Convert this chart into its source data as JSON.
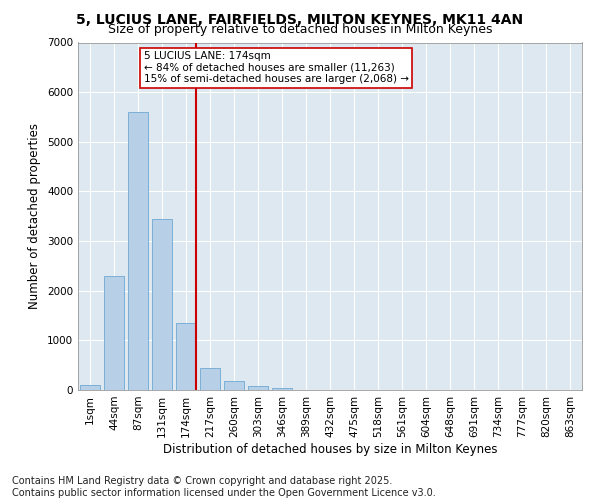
{
  "title": "5, LUCIUS LANE, FAIRFIELDS, MILTON KEYNES, MK11 4AN",
  "subtitle": "Size of property relative to detached houses in Milton Keynes",
  "xlabel": "Distribution of detached houses by size in Milton Keynes",
  "ylabel": "Number of detached properties",
  "bar_labels": [
    "1sqm",
    "44sqm",
    "87sqm",
    "131sqm",
    "174sqm",
    "217sqm",
    "260sqm",
    "303sqm",
    "346sqm",
    "389sqm",
    "432sqm",
    "475sqm",
    "518sqm",
    "561sqm",
    "604sqm",
    "648sqm",
    "691sqm",
    "734sqm",
    "777sqm",
    "820sqm",
    "863sqm"
  ],
  "bar_values": [
    100,
    2300,
    5600,
    3450,
    1350,
    450,
    175,
    90,
    40,
    0,
    0,
    0,
    0,
    0,
    0,
    0,
    0,
    0,
    0,
    0,
    0
  ],
  "bar_color": "#b8cfe8",
  "bar_edge_color": "#6fa8d4",
  "vline_color": "#cc0000",
  "annotation_text": "5 LUCIUS LANE: 174sqm\n← 84% of detached houses are smaller (11,263)\n15% of semi-detached houses are larger (2,068) →",
  "annotation_box_color": "#ffffff",
  "annotation_box_edge": "#cc0000",
  "ylim": [
    0,
    7000
  ],
  "yticks": [
    0,
    1000,
    2000,
    3000,
    4000,
    5000,
    6000,
    7000
  ],
  "background_color": "#dde8f0",
  "grid_color": "#ffffff",
  "fig_facecolor": "#ffffff",
  "footer_text": "Contains HM Land Registry data © Crown copyright and database right 2025.\nContains public sector information licensed under the Open Government Licence v3.0.",
  "title_fontsize": 10,
  "subtitle_fontsize": 9,
  "axis_label_fontsize": 8.5,
  "tick_fontsize": 7.5,
  "footer_fontsize": 7
}
